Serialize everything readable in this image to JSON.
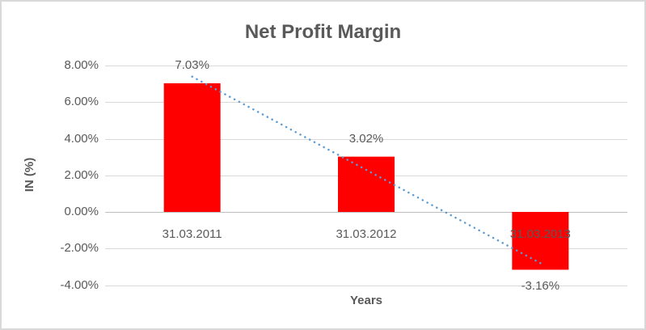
{
  "chart_data": {
    "type": "bar",
    "title": "Net Profit Margin",
    "xlabel": "Years",
    "ylabel": "IN (%)",
    "categories": [
      "31.03.2011",
      "31.03.2012",
      "31.03.2013"
    ],
    "values": [
      7.03,
      3.02,
      -3.16
    ],
    "data_labels": [
      "7.03%",
      "3.02%",
      "-3.16%"
    ],
    "y_ticks": [
      {
        "value": 8,
        "label": "8.00%"
      },
      {
        "value": 6,
        "label": "6.00%"
      },
      {
        "value": 4,
        "label": "4.00%"
      },
      {
        "value": 2,
        "label": "2.00%"
      },
      {
        "value": 0,
        "label": "0.00%"
      },
      {
        "value": -2,
        "label": "-2.00%"
      },
      {
        "value": -4,
        "label": "-4.00%"
      }
    ],
    "ylim": [
      -4,
      8
    ],
    "grid": true,
    "legend": "none",
    "trendline": {
      "type": "linear",
      "style": "dotted"
    },
    "colors": {
      "bar": "#ff0000",
      "trendline": "#5b9bd5",
      "text": "#595959",
      "gridline": "#d9d9d9",
      "axis_line": "#bfbfbf",
      "background": "#ffffff",
      "border": "#d9d9d9"
    }
  }
}
